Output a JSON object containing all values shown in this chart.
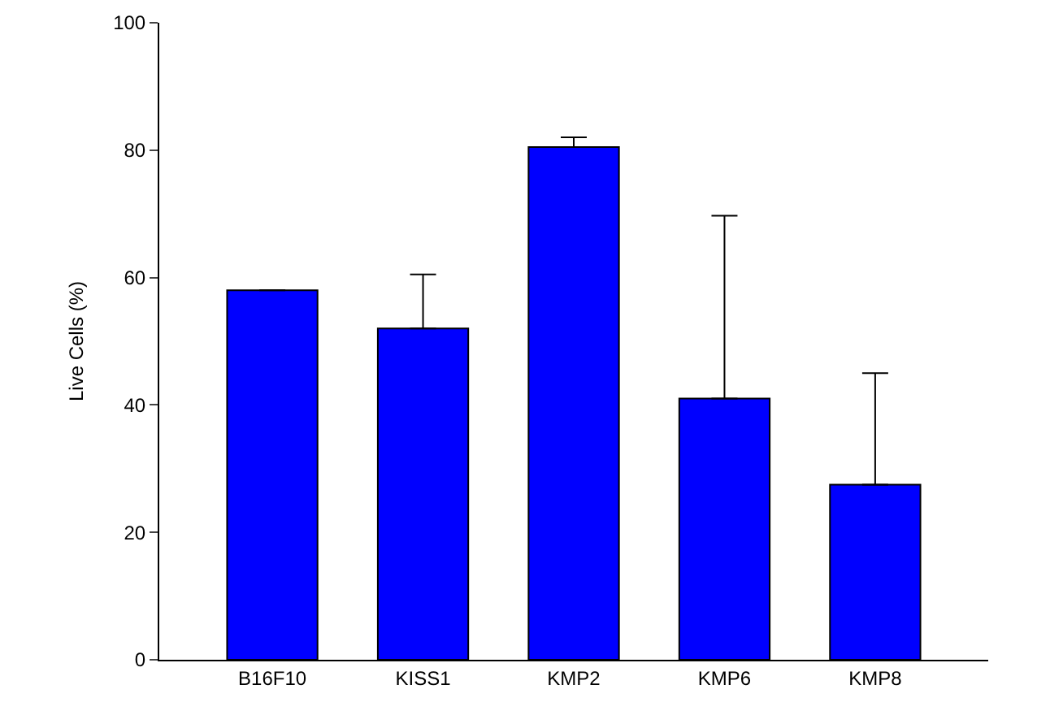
{
  "chart_data": {
    "type": "bar",
    "ylabel": "Live Cells (%)",
    "categories": [
      "B16F10",
      "KISS1",
      "KMP2",
      "KMP6",
      "KMP8"
    ],
    "values": [
      58,
      52,
      80.5,
      41,
      27.5
    ],
    "errors": [
      null,
      [
        52,
        60.5
      ],
      [
        80.5,
        82
      ],
      [
        41,
        69.7
      ],
      [
        27.5,
        45
      ]
    ],
    "color": "#0000ff",
    "ylim": [
      0,
      100
    ],
    "yticks": [
      0,
      20,
      40,
      60,
      80,
      100
    ]
  }
}
